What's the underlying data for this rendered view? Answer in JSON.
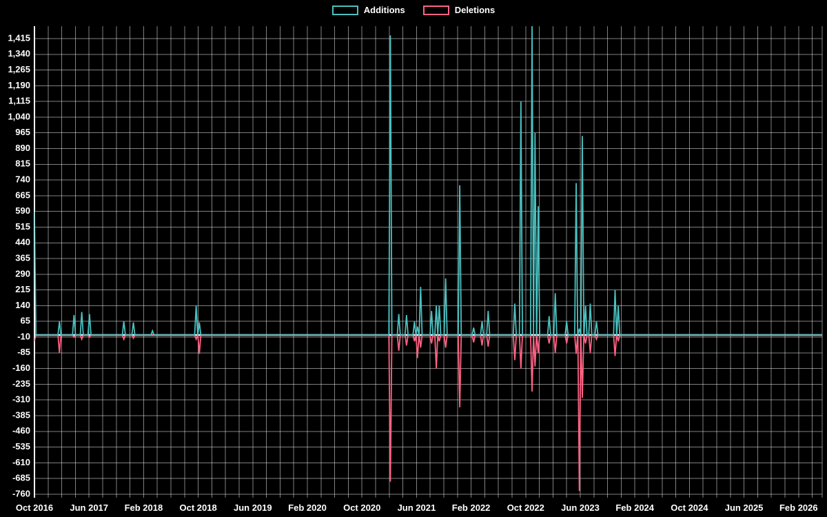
{
  "page": {
    "background": "#000000",
    "text_color": "#ffffff"
  },
  "chart_data": {
    "type": "line",
    "title": "",
    "legend_position": "top",
    "grid": true,
    "grid_color": "rgba(255,255,255,0.5)",
    "zero_line_color": "#ffffff",
    "series": [
      {
        "name": "Additions",
        "color": "#4bc0c0",
        "field": "additions"
      },
      {
        "name": "Deletions",
        "color": "#ff6384",
        "field": "deletions"
      }
    ],
    "x_axis": {
      "start": "2016-10",
      "tick_labels": [
        "Oct 2016",
        "Jun 2017",
        "Feb 2018",
        "Oct 2018",
        "Jun 2019",
        "Feb 2020",
        "Oct 2020",
        "Jun 2021",
        "Feb 2022",
        "Oct 2022",
        "Jun 2023",
        "Feb 2024",
        "Oct 2024",
        "Jun 2025",
        "Feb 2026"
      ],
      "months_per_label": 8,
      "minor_grid_every_months": 2
    },
    "y_axis": {
      "min": -760,
      "max": 1415,
      "step": 75,
      "tick_labels": [
        "1,415",
        "1,340",
        "1,265",
        "1,190",
        "1,115",
        "1,040",
        "965",
        "890",
        "815",
        "740",
        "665",
        "590",
        "515",
        "440",
        "365",
        "290",
        "215",
        "140",
        "65",
        "-10",
        "-85",
        "-160",
        "-235",
        "-310",
        "-385",
        "-460",
        "-535",
        "-610",
        "-685",
        "-760"
      ]
    },
    "baseline_value": 0,
    "events": [
      {
        "date": "2016-10-01",
        "additions": 590,
        "deletions": -30
      },
      {
        "date": "2017-01-21",
        "additions": 65,
        "deletions": -85
      },
      {
        "date": "2017-03-25",
        "additions": 95,
        "deletions": -10
      },
      {
        "date": "2017-04-29",
        "additions": 110,
        "deletions": -20
      },
      {
        "date": "2017-06-03",
        "additions": 100,
        "deletions": -10
      },
      {
        "date": "2017-11-04",
        "additions": 65,
        "deletions": -20
      },
      {
        "date": "2017-12-16",
        "additions": 60,
        "deletions": -15
      },
      {
        "date": "2018-03-10",
        "additions": 20,
        "deletions": 0
      },
      {
        "date": "2018-09-22",
        "additions": 140,
        "deletions": -20
      },
      {
        "date": "2018-10-06",
        "additions": 60,
        "deletions": -90
      },
      {
        "date": "2021-02-06",
        "additions": 1430,
        "deletions": -700
      },
      {
        "date": "2021-03-13",
        "additions": 100,
        "deletions": -75
      },
      {
        "date": "2021-04-17",
        "additions": 95,
        "deletions": -50
      },
      {
        "date": "2021-05-22",
        "additions": 65,
        "deletions": -30
      },
      {
        "date": "2021-06-05",
        "additions": 40,
        "deletions": -110
      },
      {
        "date": "2021-06-19",
        "additions": 230,
        "deletions": -60
      },
      {
        "date": "2021-08-07",
        "additions": 115,
        "deletions": -40
      },
      {
        "date": "2021-08-28",
        "additions": 140,
        "deletions": -160
      },
      {
        "date": "2021-09-11",
        "additions": 140,
        "deletions": -30
      },
      {
        "date": "2021-10-09",
        "additions": 270,
        "deletions": -60
      },
      {
        "date": "2021-12-11",
        "additions": 715,
        "deletions": -345
      },
      {
        "date": "2022-02-12",
        "additions": 35,
        "deletions": -35
      },
      {
        "date": "2022-03-19",
        "additions": 65,
        "deletions": -50
      },
      {
        "date": "2022-04-16",
        "additions": 115,
        "deletions": -55
      },
      {
        "date": "2022-08-13",
        "additions": 150,
        "deletions": -120
      },
      {
        "date": "2022-09-10",
        "additions": 1115,
        "deletions": -160
      },
      {
        "date": "2022-10-29",
        "additions": 1490,
        "deletions": -270
      },
      {
        "date": "2022-11-12",
        "additions": 965,
        "deletions": -150
      },
      {
        "date": "2022-11-26",
        "additions": 615,
        "deletions": -85
      },
      {
        "date": "2023-01-14",
        "additions": 90,
        "deletions": -40
      },
      {
        "date": "2023-02-11",
        "additions": 200,
        "deletions": -85
      },
      {
        "date": "2023-04-01",
        "additions": 65,
        "deletions": -40
      },
      {
        "date": "2023-05-13",
        "additions": 725,
        "deletions": -90
      },
      {
        "date": "2023-05-27",
        "additions": 30,
        "deletions": -745
      },
      {
        "date": "2023-06-10",
        "additions": 950,
        "deletions": -300
      },
      {
        "date": "2023-06-24",
        "additions": 140,
        "deletions": -40
      },
      {
        "date": "2023-07-15",
        "additions": 150,
        "deletions": -85
      },
      {
        "date": "2023-08-12",
        "additions": 65,
        "deletions": -20
      },
      {
        "date": "2023-11-04",
        "additions": 215,
        "deletions": -100
      },
      {
        "date": "2023-11-18",
        "additions": 140,
        "deletions": -30
      }
    ]
  }
}
